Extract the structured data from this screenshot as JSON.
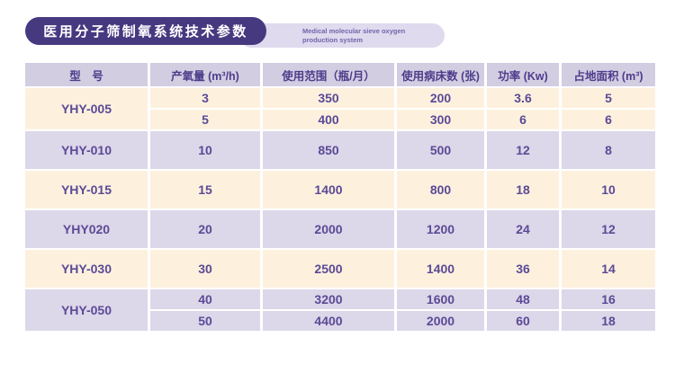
{
  "header": {
    "title": "医用分子筛制氧系统技术参数",
    "subtitle": "Medical molecular sieve oxygen production system"
  },
  "colors": {
    "brand_dark_purple": "#473980",
    "brand_light_purple": "#dfdaee",
    "table_header_bg": "#d3cde2",
    "row_cream": "#fdf1de",
    "row_lavender": "#dcd7e9",
    "text_purple": "#5b4a96"
  },
  "chart_data": {
    "type": "table",
    "title": "医用分子筛制氧系统技术参数",
    "subtitle": "Medical molecular sieve oxygen production system",
    "columns": [
      "型　号",
      "产氧量 (m³/h)",
      "使用范围（瓶/月）",
      "使用病床数 (张)",
      "功率 (Kw)",
      "占地面积 (m³)"
    ],
    "groups": [
      {
        "model": "YHY-005",
        "rows": [
          [
            3,
            350,
            200,
            3.6,
            5
          ],
          [
            5,
            400,
            300,
            6,
            6
          ]
        ]
      },
      {
        "model": "YHY-010",
        "rows": [
          [
            10,
            850,
            500,
            12,
            8
          ]
        ]
      },
      {
        "model": "YHY-015",
        "rows": [
          [
            15,
            1400,
            800,
            18,
            10
          ]
        ]
      },
      {
        "model": "YHY020",
        "rows": [
          [
            20,
            2000,
            1200,
            24,
            12
          ]
        ]
      },
      {
        "model": "YHY-030",
        "rows": [
          [
            30,
            2500,
            1400,
            36,
            14
          ]
        ]
      },
      {
        "model": "YHY-050",
        "rows": [
          [
            40,
            3200,
            1600,
            48,
            16
          ],
          [
            50,
            4400,
            2000,
            60,
            18
          ]
        ]
      }
    ]
  }
}
